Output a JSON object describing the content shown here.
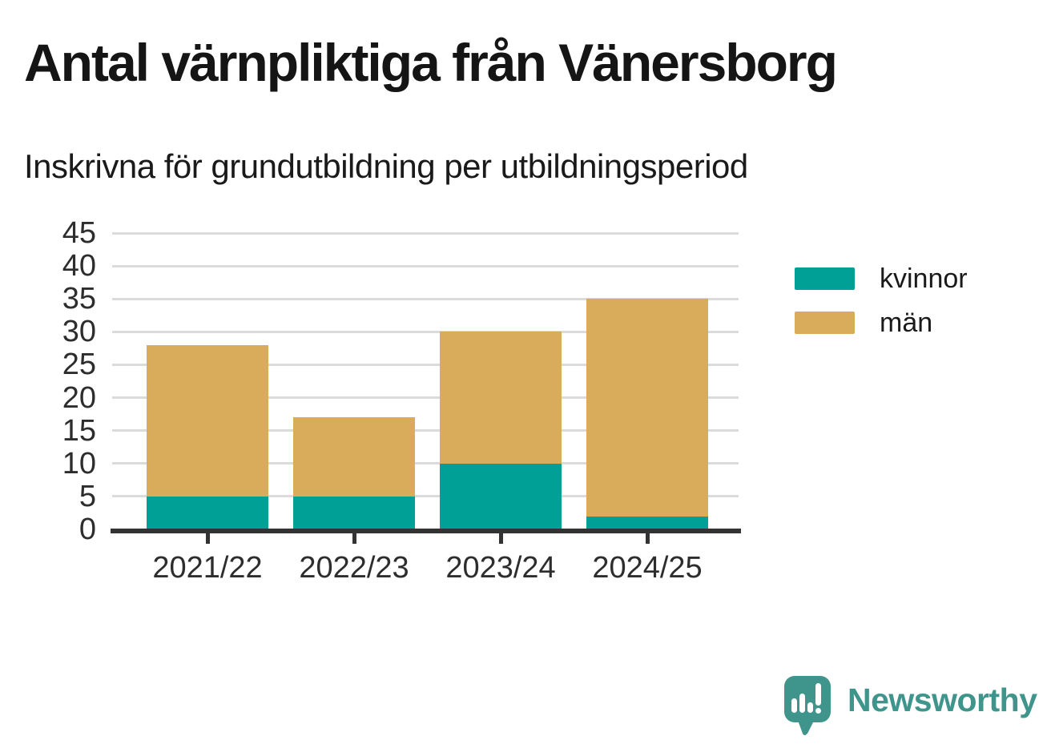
{
  "title": "Antal värnpliktiga från Vänersborg",
  "subtitle": "Inskrivna för grundutbildning per utbildningsperiod",
  "chart_data": {
    "type": "bar",
    "stacked": true,
    "title": "Antal värnpliktiga från Vänersborg",
    "subtitle": "Inskrivna för grundutbildning per utbildningsperiod",
    "categories": [
      "2021/22",
      "2022/23",
      "2023/24",
      "2024/25"
    ],
    "series": [
      {
        "name": "kvinnor",
        "color": "#00A096",
        "values": [
          5,
          5,
          10,
          2
        ]
      },
      {
        "name": "män",
        "color": "#D9AC5B",
        "values": [
          23,
          12,
          20,
          33
        ]
      }
    ],
    "stack_totals": [
      28,
      17,
      30,
      35
    ],
    "xlabel": "",
    "ylabel": "",
    "ylim": [
      0,
      45
    ],
    "yticks": [
      0,
      5,
      10,
      15,
      20,
      25,
      30,
      35,
      40,
      45
    ],
    "grid": true,
    "legend_position": "right-of-plot"
  },
  "colors": {
    "kvinnor": "#00A096",
    "man": "#D9AC5B",
    "axis": "#333333",
    "gridline": "#DBDBDB",
    "text": "#1A1A1A",
    "brand_teal": "#3F948C",
    "background": "#FFFFFF"
  },
  "branding": {
    "logo_text": "Newsworthy"
  }
}
